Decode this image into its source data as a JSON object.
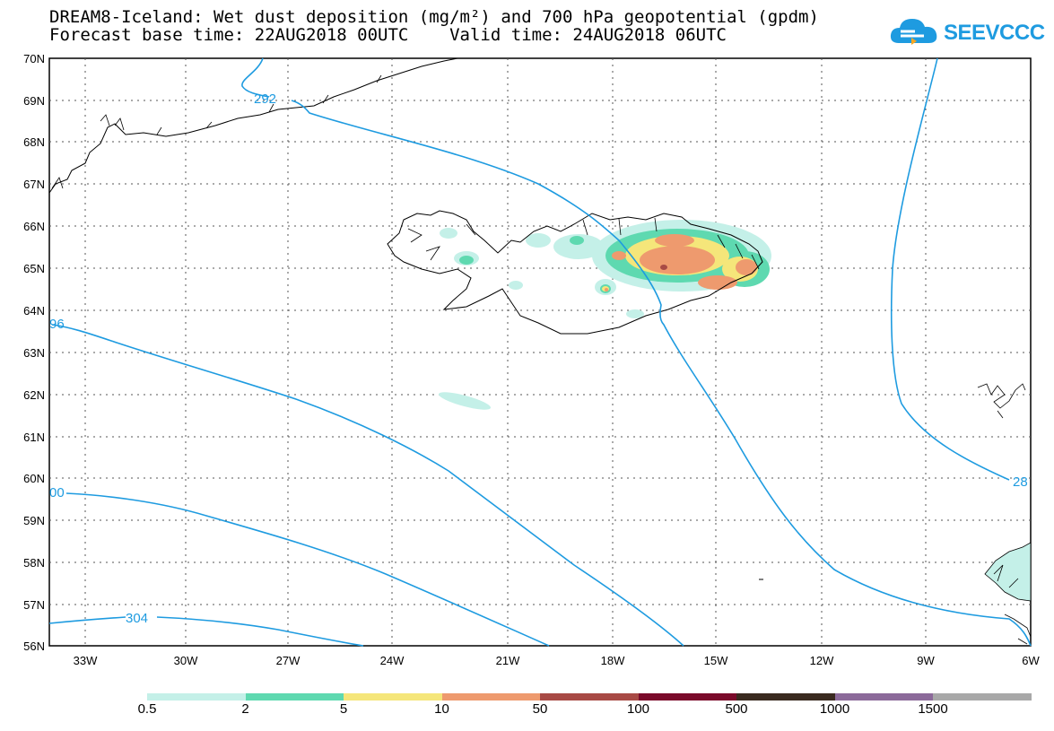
{
  "header": {
    "title_line1": "DREAM8-Iceland: Wet dust deposition (mg/m²) and 700 hPa geopotential (gpdm)",
    "title_line2": "Forecast base time: 22AUG2018 00UTC    Valid time: 24AUG2018 06UTC",
    "logo_text": "SEEVCCC"
  },
  "map": {
    "lat_labels": [
      "70N",
      "69N",
      "68N",
      "67N",
      "66N",
      "65N",
      "64N",
      "63N",
      "62N",
      "61N",
      "60N",
      "59N",
      "58N",
      "57N",
      "56N"
    ],
    "lon_labels": [
      "33W",
      "30W",
      "27W",
      "24W",
      "21W",
      "18W",
      "15W",
      "12W",
      "9W",
      "6W"
    ],
    "contour_labels": {
      "c292": "292",
      "c96": "96",
      "c00": "00",
      "c304": "304",
      "c28": "28"
    }
  },
  "legend": {
    "labels": [
      "0.5",
      "2",
      "5",
      "10",
      "50",
      "100",
      "500",
      "1000",
      "1500"
    ],
    "colors": [
      "#c4f0e8",
      "#5ed9b0",
      "#f5e67a",
      "#ee9a6e",
      "#a84a45",
      "#7a0a2a",
      "#3a2a20",
      "#8c6a9a",
      "#a8a8a8"
    ]
  }
}
